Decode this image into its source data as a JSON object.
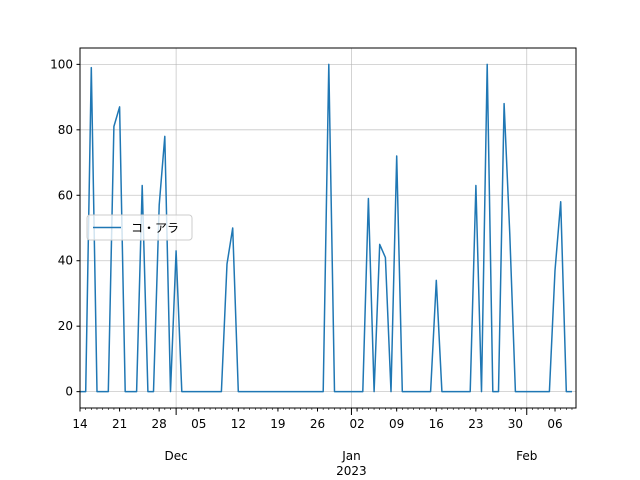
{
  "chart_data": {
    "type": "line",
    "title": "",
    "xlabel": "",
    "ylabel": "",
    "x_start": "2022-11-14",
    "x_end": "2023-02-09",
    "x_frequency": "daily",
    "ylim": [
      -5,
      105
    ],
    "yticks": [
      0,
      20,
      40,
      60,
      80,
      100
    ],
    "xtick_labels": [
      {
        "date": "2022-11-14",
        "label": "14"
      },
      {
        "date": "2022-11-21",
        "label": "21"
      },
      {
        "date": "2022-11-28",
        "label": "28"
      },
      {
        "date": "2022-12-05",
        "label": "05"
      },
      {
        "date": "2022-12-12",
        "label": "12"
      },
      {
        "date": "2022-12-19",
        "label": "19"
      },
      {
        "date": "2022-12-26",
        "label": "26"
      },
      {
        "date": "2023-01-02",
        "label": "02"
      },
      {
        "date": "2023-01-09",
        "label": "09"
      },
      {
        "date": "2023-01-16",
        "label": "16"
      },
      {
        "date": "2023-01-23",
        "label": "23"
      },
      {
        "date": "2023-01-30",
        "label": "30"
      },
      {
        "date": "2023-02-06",
        "label": "06"
      }
    ],
    "month_labels": [
      {
        "date": "2022-12-01",
        "label": "Dec",
        "sub": ""
      },
      {
        "date": "2023-01-01",
        "label": "Jan",
        "sub": "2023"
      },
      {
        "date": "2023-02-01",
        "label": "Feb",
        "sub": ""
      }
    ],
    "grid": true,
    "legend_placement": "center-left",
    "series": [
      {
        "name": "コ・アラ",
        "color": "#1f77b4",
        "values": [
          0,
          0,
          99,
          0,
          0,
          0,
          81,
          87,
          0,
          0,
          0,
          63,
          0,
          0,
          57,
          78,
          0,
          43,
          0,
          0,
          0,
          0,
          0,
          0,
          0,
          0,
          39,
          50,
          0,
          0,
          0,
          0,
          0,
          0,
          0,
          0,
          0,
          0,
          0,
          0,
          0,
          0,
          0,
          0,
          100,
          0,
          0,
          0,
          0,
          0,
          0,
          59,
          0,
          45,
          41,
          0,
          72,
          0,
          0,
          0,
          0,
          0,
          0,
          34,
          0,
          0,
          0,
          0,
          0,
          0,
          63,
          0,
          100,
          0,
          0,
          88,
          48,
          0,
          0,
          0,
          0,
          0,
          0,
          0,
          37,
          58,
          0,
          0
        ]
      }
    ]
  }
}
